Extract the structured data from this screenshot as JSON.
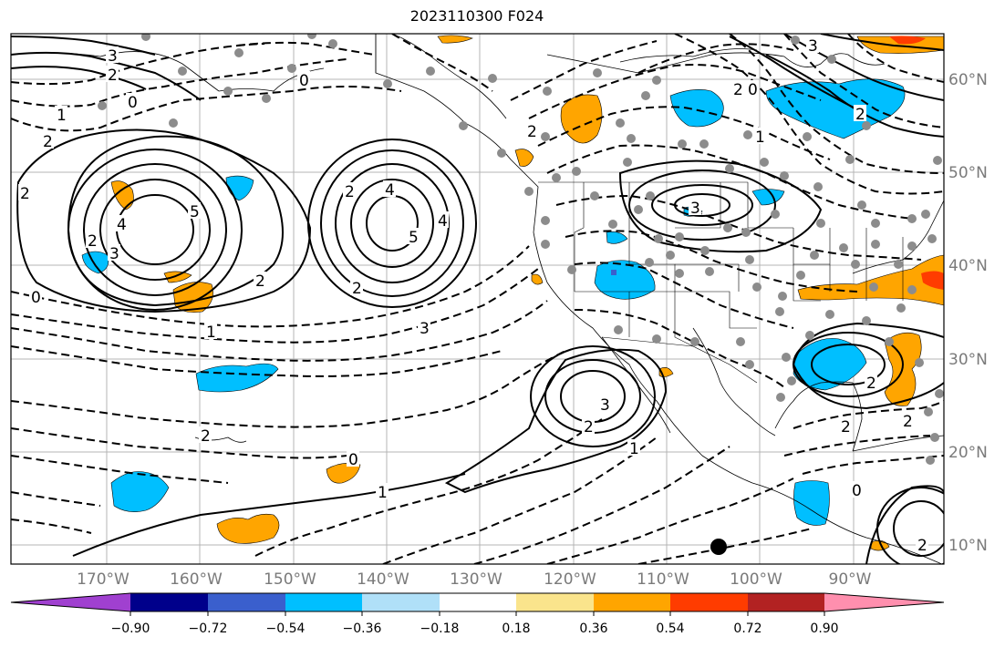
{
  "title": "2023110300 F024",
  "map": {
    "lat_labels": [
      "60°N",
      "50°N",
      "40°N",
      "30°N",
      "20°N",
      "10°N"
    ],
    "lon_labels": [
      "170°W",
      "160°W",
      "150°W",
      "140°W",
      "130°W",
      "120°W",
      "110°W",
      "100°W",
      "90°W"
    ],
    "contour_labels": [
      "3",
      "2",
      "0",
      "1",
      "2",
      "0",
      "2",
      "0",
      "1",
      "2",
      "4",
      "2",
      "3",
      "4",
      "5",
      "2",
      "2",
      "4",
      "5",
      "3",
      "2",
      "3",
      "2",
      "0",
      "1",
      "3",
      "2",
      "2",
      "0",
      "0",
      "1",
      "1",
      "2",
      "3",
      "2",
      "2",
      "2",
      "2"
    ]
  },
  "colorbar": {
    "ticks": [
      "−0.90",
      "−0.72",
      "−0.54",
      "−0.36",
      "−0.18",
      "0.18",
      "0.36",
      "0.54",
      "0.72",
      "0.90"
    ],
    "colors": {
      "under": "#a040d0",
      "bins": [
        "#9b34d0",
        "#00008b",
        "#3a5fcd",
        "#00bfff",
        "#b0e0f8",
        "#ffffff",
        "#fae48c",
        "#ffa500",
        "#ff3c00",
        "#b22222",
        "#ff8fae"
      ],
      "over": "#ff8fae"
    }
  },
  "colors": {
    "ocean": "#ffffff",
    "grid": "#b4b4b4",
    "contour": "#000000",
    "positive_fill": "#ffa500",
    "negative_fill": "#00bfff",
    "station_dot": "#8c8c8c"
  }
}
